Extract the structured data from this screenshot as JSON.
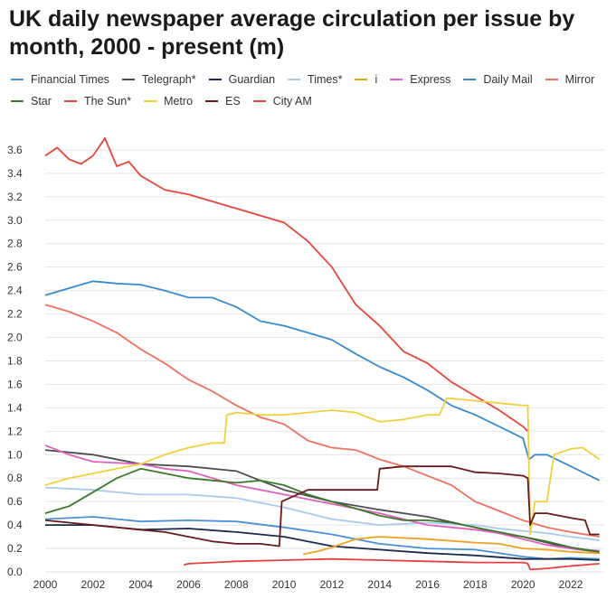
{
  "chart_data": {
    "type": "line",
    "title": "UK daily newspaper average circulation per issue by month, 2000 - present (m)",
    "xlabel": "",
    "ylabel": "",
    "xlim": [
      2000,
      2023.4
    ],
    "ylim": [
      0,
      3.8
    ],
    "x_ticks": [
      2000,
      2002,
      2004,
      2006,
      2008,
      2010,
      2012,
      2014,
      2016,
      2018,
      2020,
      2022
    ],
    "y_ticks": [
      0.0,
      0.2,
      0.4,
      0.6,
      0.8,
      1.0,
      1.2,
      1.4,
      1.6,
      1.8,
      2.0,
      2.2,
      2.4,
      2.6,
      2.8,
      3.0,
      3.2,
      3.4,
      3.6
    ],
    "grid": "horizontal",
    "legend_position": "top",
    "series": [
      {
        "name": "Financial Times",
        "color": "#4a90d9",
        "points": [
          [
            2000,
            0.45
          ],
          [
            2002,
            0.47
          ],
          [
            2004,
            0.43
          ],
          [
            2006,
            0.44
          ],
          [
            2008,
            0.43
          ],
          [
            2010,
            0.38
          ],
          [
            2012,
            0.32
          ],
          [
            2014,
            0.24
          ],
          [
            2016,
            0.2
          ],
          [
            2018,
            0.19
          ],
          [
            2020,
            0.13
          ],
          [
            2021,
            0.11
          ],
          [
            2022,
            0.12
          ],
          [
            2023.2,
            0.11
          ]
        ]
      },
      {
        "name": "Telegraph*",
        "color": "#4d4d4d",
        "points": [
          [
            2000,
            1.04
          ],
          [
            2001,
            1.02
          ],
          [
            2002,
            1.0
          ],
          [
            2004,
            0.92
          ],
          [
            2006,
            0.9
          ],
          [
            2008,
            0.86
          ],
          [
            2010,
            0.7
          ],
          [
            2012,
            0.6
          ],
          [
            2014,
            0.53
          ],
          [
            2016,
            0.47
          ],
          [
            2018,
            0.38
          ],
          [
            2019,
            0.33
          ],
          [
            2020,
            0.3
          ],
          [
            2021,
            0.25
          ],
          [
            2022,
            0.2
          ],
          [
            2023.2,
            0.17
          ]
        ]
      },
      {
        "name": "Guardian",
        "color": "#1a2a4a",
        "points": [
          [
            2000,
            0.4
          ],
          [
            2002,
            0.4
          ],
          [
            2004,
            0.36
          ],
          [
            2006,
            0.37
          ],
          [
            2008,
            0.34
          ],
          [
            2010,
            0.3
          ],
          [
            2012,
            0.22
          ],
          [
            2014,
            0.19
          ],
          [
            2016,
            0.16
          ],
          [
            2018,
            0.14
          ],
          [
            2020,
            0.11
          ],
          [
            2021,
            0.11
          ],
          [
            2022,
            0.11
          ],
          [
            2023.2,
            0.1
          ]
        ]
      },
      {
        "name": "Times*",
        "color": "#a9cbe8",
        "points": [
          [
            2000,
            0.72
          ],
          [
            2002,
            0.7
          ],
          [
            2004,
            0.66
          ],
          [
            2006,
            0.66
          ],
          [
            2008,
            0.63
          ],
          [
            2010,
            0.55
          ],
          [
            2012,
            0.45
          ],
          [
            2014,
            0.4
          ],
          [
            2016,
            0.42
          ],
          [
            2018,
            0.4
          ],
          [
            2019,
            0.37
          ],
          [
            2020,
            0.35
          ],
          [
            2021,
            0.33
          ],
          [
            2022,
            0.3
          ],
          [
            2023.2,
            0.27
          ]
        ]
      },
      {
        "name": "i",
        "color": "#f0a020",
        "points": [
          [
            2010.8,
            0.15
          ],
          [
            2011.5,
            0.18
          ],
          [
            2012,
            0.21
          ],
          [
            2013,
            0.28
          ],
          [
            2014,
            0.3
          ],
          [
            2016,
            0.28
          ],
          [
            2018,
            0.25
          ],
          [
            2019,
            0.24
          ],
          [
            2020,
            0.2
          ],
          [
            2021,
            0.19
          ],
          [
            2022,
            0.17
          ],
          [
            2023.2,
            0.16
          ]
        ]
      },
      {
        "name": "Express",
        "color": "#e060c0",
        "points": [
          [
            2000,
            1.08
          ],
          [
            2001,
            1.0
          ],
          [
            2002,
            0.94
          ],
          [
            2004,
            0.92
          ],
          [
            2005,
            0.88
          ],
          [
            2006,
            0.86
          ],
          [
            2008,
            0.74
          ],
          [
            2010,
            0.66
          ],
          [
            2012,
            0.58
          ],
          [
            2014,
            0.5
          ],
          [
            2016,
            0.4
          ],
          [
            2018,
            0.36
          ],
          [
            2019,
            0.33
          ],
          [
            2020,
            0.28
          ],
          [
            2021,
            0.23
          ],
          [
            2022,
            0.2
          ],
          [
            2023.2,
            0.18
          ]
        ]
      },
      {
        "name": "Daily Mail",
        "color": "#3a8ad0",
        "points": [
          [
            2000,
            2.36
          ],
          [
            2001,
            2.42
          ],
          [
            2002,
            2.48
          ],
          [
            2003,
            2.46
          ],
          [
            2004,
            2.45
          ],
          [
            2005,
            2.4
          ],
          [
            2006,
            2.34
          ],
          [
            2007,
            2.34
          ],
          [
            2008,
            2.26
          ],
          [
            2009,
            2.14
          ],
          [
            2010,
            2.1
          ],
          [
            2011,
            2.04
          ],
          [
            2012,
            1.98
          ],
          [
            2013,
            1.86
          ],
          [
            2014,
            1.75
          ],
          [
            2015,
            1.66
          ],
          [
            2016,
            1.55
          ],
          [
            2017,
            1.42
          ],
          [
            2018,
            1.34
          ],
          [
            2019,
            1.24
          ],
          [
            2020,
            1.14
          ],
          [
            2020.25,
            0.96
          ],
          [
            2020.5,
            1.0
          ],
          [
            2021,
            1.0
          ],
          [
            2022,
            0.9
          ],
          [
            2023.2,
            0.78
          ]
        ]
      },
      {
        "name": "Mirror",
        "color": "#f07060",
        "points": [
          [
            2000,
            2.28
          ],
          [
            2001,
            2.22
          ],
          [
            2002,
            2.14
          ],
          [
            2003,
            2.04
          ],
          [
            2004,
            1.9
          ],
          [
            2005,
            1.78
          ],
          [
            2006,
            1.64
          ],
          [
            2007,
            1.54
          ],
          [
            2008,
            1.42
          ],
          [
            2009,
            1.32
          ],
          [
            2010,
            1.26
          ],
          [
            2011,
            1.12
          ],
          [
            2012,
            1.06
          ],
          [
            2013,
            1.04
          ],
          [
            2014,
            0.96
          ],
          [
            2015,
            0.9
          ],
          [
            2016,
            0.82
          ],
          [
            2017,
            0.74
          ],
          [
            2018,
            0.6
          ],
          [
            2019,
            0.52
          ],
          [
            2020,
            0.44
          ],
          [
            2021,
            0.38
          ],
          [
            2022,
            0.34
          ],
          [
            2023.2,
            0.3
          ]
        ]
      },
      {
        "name": "Star",
        "color": "#3a7a2a",
        "points": [
          [
            2000,
            0.5
          ],
          [
            2001,
            0.56
          ],
          [
            2002,
            0.68
          ],
          [
            2003,
            0.8
          ],
          [
            2004,
            0.88
          ],
          [
            2005,
            0.84
          ],
          [
            2006,
            0.8
          ],
          [
            2007,
            0.78
          ],
          [
            2008,
            0.76
          ],
          [
            2009,
            0.78
          ],
          [
            2010,
            0.74
          ],
          [
            2011,
            0.66
          ],
          [
            2012,
            0.6
          ],
          [
            2013,
            0.54
          ],
          [
            2014,
            0.48
          ],
          [
            2015,
            0.44
          ],
          [
            2016,
            0.44
          ],
          [
            2017,
            0.42
          ],
          [
            2018,
            0.38
          ],
          [
            2019,
            0.34
          ],
          [
            2020,
            0.3
          ],
          [
            2021,
            0.26
          ],
          [
            2022,
            0.21
          ],
          [
            2023.2,
            0.17
          ]
        ]
      },
      {
        "name": "The Sun*",
        "color": "#e8443a",
        "points": [
          [
            2000,
            3.55
          ],
          [
            2000.5,
            3.62
          ],
          [
            2001,
            3.52
          ],
          [
            2001.5,
            3.48
          ],
          [
            2002,
            3.55
          ],
          [
            2002.5,
            3.7
          ],
          [
            2003,
            3.46
          ],
          [
            2003.5,
            3.5
          ],
          [
            2004,
            3.38
          ],
          [
            2005,
            3.26
          ],
          [
            2006,
            3.22
          ],
          [
            2007,
            3.16
          ],
          [
            2008,
            3.1
          ],
          [
            2009,
            3.04
          ],
          [
            2010,
            2.98
          ],
          [
            2011,
            2.82
          ],
          [
            2012,
            2.6
          ],
          [
            2013,
            2.28
          ],
          [
            2014,
            2.1
          ],
          [
            2015,
            1.88
          ],
          [
            2016,
            1.78
          ],
          [
            2017,
            1.62
          ],
          [
            2018,
            1.5
          ],
          [
            2019,
            1.38
          ],
          [
            2020,
            1.24
          ],
          [
            2020.2,
            1.2
          ]
        ]
      },
      {
        "name": "Metro",
        "color": "#f0d040",
        "points": [
          [
            2000,
            0.74
          ],
          [
            2001,
            0.8
          ],
          [
            2002,
            0.84
          ],
          [
            2003,
            0.88
          ],
          [
            2004,
            0.92
          ],
          [
            2005,
            1.0
          ],
          [
            2006,
            1.06
          ],
          [
            2007,
            1.1
          ],
          [
            2007.5,
            1.1
          ],
          [
            2007.6,
            1.34
          ],
          [
            2008,
            1.36
          ],
          [
            2009,
            1.34
          ],
          [
            2010,
            1.34
          ],
          [
            2011,
            1.36
          ],
          [
            2012,
            1.38
          ],
          [
            2013,
            1.36
          ],
          [
            2014,
            1.28
          ],
          [
            2015,
            1.3
          ],
          [
            2016,
            1.34
          ],
          [
            2016.5,
            1.34
          ],
          [
            2016.8,
            1.48
          ],
          [
            2017,
            1.48
          ],
          [
            2018,
            1.46
          ],
          [
            2019,
            1.44
          ],
          [
            2020,
            1.42
          ],
          [
            2020.2,
            1.42
          ],
          [
            2020.3,
            0.32
          ],
          [
            2020.5,
            0.6
          ],
          [
            2021,
            0.6
          ],
          [
            2021.3,
            1.0
          ],
          [
            2022,
            1.05
          ],
          [
            2022.5,
            1.06
          ],
          [
            2023.2,
            0.96
          ]
        ]
      },
      {
        "name": "ES",
        "color": "#6a1a1a",
        "points": [
          [
            2000,
            0.44
          ],
          [
            2002,
            0.4
          ],
          [
            2004,
            0.36
          ],
          [
            2005,
            0.34
          ],
          [
            2006,
            0.3
          ],
          [
            2007,
            0.26
          ],
          [
            2008,
            0.24
          ],
          [
            2009,
            0.24
          ],
          [
            2009.8,
            0.22
          ],
          [
            2009.9,
            0.6
          ],
          [
            2010,
            0.61
          ],
          [
            2011,
            0.7
          ],
          [
            2012,
            0.7
          ],
          [
            2013,
            0.7
          ],
          [
            2013.9,
            0.7
          ],
          [
            2014,
            0.88
          ],
          [
            2015,
            0.9
          ],
          [
            2016,
            0.9
          ],
          [
            2017,
            0.9
          ],
          [
            2018,
            0.85
          ],
          [
            2019,
            0.84
          ],
          [
            2020,
            0.82
          ],
          [
            2020.2,
            0.8
          ],
          [
            2020.3,
            0.4
          ],
          [
            2020.5,
            0.5
          ],
          [
            2021,
            0.5
          ],
          [
            2022,
            0.46
          ],
          [
            2022.6,
            0.44
          ],
          [
            2022.8,
            0.32
          ],
          [
            2023.2,
            0.32
          ]
        ]
      },
      {
        "name": "City AM",
        "color": "#e84040",
        "points": [
          [
            2005.8,
            0.06
          ],
          [
            2006,
            0.07
          ],
          [
            2008,
            0.09
          ],
          [
            2010,
            0.1
          ],
          [
            2012,
            0.11
          ],
          [
            2014,
            0.1
          ],
          [
            2016,
            0.09
          ],
          [
            2018,
            0.08
          ],
          [
            2019,
            0.08
          ],
          [
            2020,
            0.08
          ],
          [
            2020.2,
            0.07
          ],
          [
            2020.3,
            0.02
          ],
          [
            2021,
            0.03
          ],
          [
            2022,
            0.05
          ],
          [
            2023.2,
            0.07
          ]
        ]
      }
    ]
  }
}
